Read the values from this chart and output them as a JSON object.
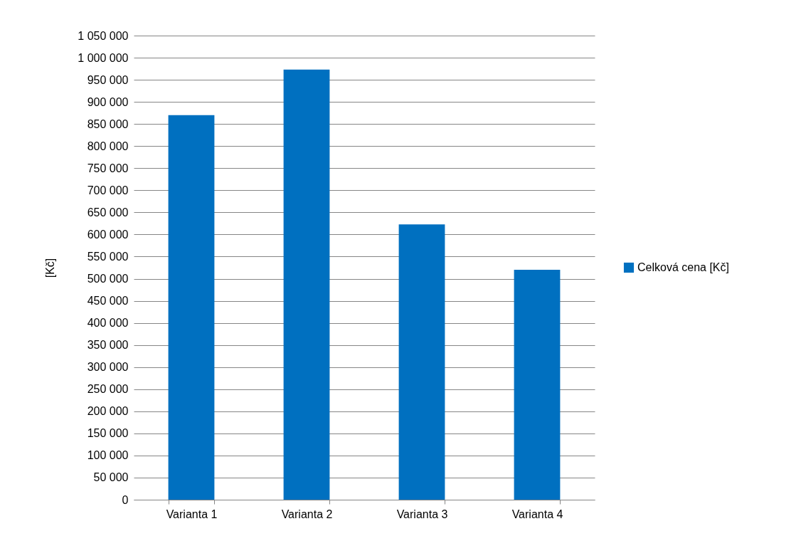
{
  "chart_data": {
    "type": "bar",
    "ylabel": "[Kč]",
    "categories": [
      "Varianta 1",
      "Varianta 2",
      "Varianta 3",
      "Varianta 4"
    ],
    "series": [
      {
        "name": "Celková cena [Kč]",
        "color": "#0070c0",
        "values": [
          870000,
          973000,
          623000,
          520000
        ]
      }
    ],
    "ylim": [
      0,
      1050000
    ],
    "yticks": [
      0,
      {
        "value": 50000,
        "label": "50 000"
      },
      {
        "value": 100000,
        "label": "100 000"
      },
      {
        "value": 150000,
        "label": "150 000"
      },
      {
        "value": 200000,
        "label": "200 000"
      },
      {
        "value": 250000,
        "label": "250 000"
      },
      {
        "value": 300000,
        "label": "300 000"
      },
      {
        "value": 350000,
        "label": "350 000"
      },
      {
        "value": 400000,
        "label": "400 000"
      },
      {
        "value": 450000,
        "label": "450 000"
      },
      {
        "value": 500000,
        "label": "500 000"
      },
      {
        "value": 550000,
        "label": "550 000"
      },
      {
        "value": 600000,
        "label": "600 000"
      },
      {
        "value": 650000,
        "label": "650 000"
      },
      {
        "value": 700000,
        "label": "700 000"
      },
      {
        "value": 750000,
        "label": "750 000"
      },
      {
        "value": 800000,
        "label": "800 000"
      },
      {
        "value": 850000,
        "label": "850 000"
      },
      {
        "value": 900000,
        "label": "900 000"
      },
      {
        "value": 950000,
        "label": "950 000"
      },
      {
        "value": 1000000,
        "label": "1 000 000"
      },
      {
        "value": 1050000,
        "label": "1 050 000"
      }
    ],
    "grid": "y",
    "legend": "right"
  }
}
